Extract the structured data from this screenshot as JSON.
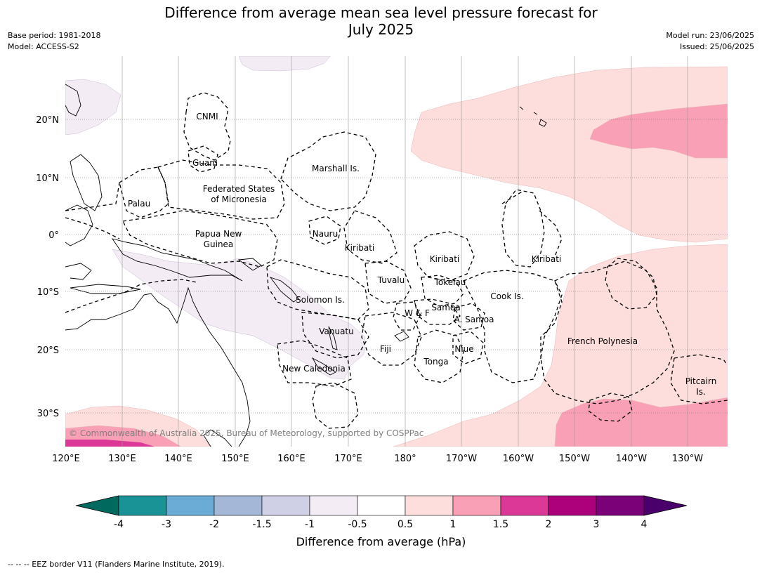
{
  "header": {
    "title_line1": "Difference from average mean sea level pressure forecast for",
    "title_line2": "July 2025",
    "base_period": "Base period: 1981-2018",
    "model": "Model: ACCESS-S2",
    "model_run": "Model run: 23/06/2025",
    "issued": "Issued: 25/06/2025"
  },
  "map": {
    "lat_labels": [
      "20°N",
      "10°N",
      "0°",
      "10°S",
      "20°S",
      "30°S"
    ],
    "lon_labels": [
      "120°E",
      "130°E",
      "140°E",
      "150°E",
      "160°E",
      "170°E",
      "180°",
      "170°W",
      "160°W",
      "150°W",
      "140°W",
      "130°W"
    ],
    "regions": {
      "cnmi": "CNMI",
      "guam": "Guam",
      "marshall": "Marshall Is.",
      "fsm_1": "Federated States",
      "fsm_2": "of Micronesia",
      "palau": "Palau",
      "png_1": "Papua New",
      "png_2": "Guinea",
      "nauru": "Nauru",
      "kiribati_w": "Kiribati",
      "kiribati_c": "Kiribati",
      "kiribati_e": "Kiribati",
      "tuvalu": "Tuvalu",
      "tokelau": "Tokelau",
      "cook": "Cook Is.",
      "solomon": "Solomon Is.",
      "wf": "W & F",
      "samoa": "Samoa",
      "asamoa": "A. Samoa",
      "vanuatu": "Vanuatu",
      "fiji": "Fiji",
      "niue": "Niue",
      "tonga": "Tonga",
      "newcal": "New Caledonia",
      "frenchpoly": "French Polynesia",
      "pitcairn_1": "Pitcairn",
      "pitcairn_2": "Is."
    },
    "copyright": "© Commonwealth of Australia 2025, Bureau of Meteorology, supported by COSPPac"
  },
  "colorbar": {
    "ticks": [
      "-4",
      "-3",
      "-2",
      "-1.5",
      "-1",
      "-0.5",
      "0.5",
      "1",
      "1.5",
      "2",
      "3",
      "4"
    ],
    "colors": [
      "#1a9396",
      "#6aacd5",
      "#a5b7d7",
      "#cfcfe5",
      "#f3ecf5",
      "#ffffff",
      "#fddedd",
      "#f9a0b6",
      "#dc3897",
      "#ad017c",
      "#7a0177"
    ],
    "under_color": "#02695e",
    "over_color": "#49006a",
    "label": "Difference from average (hPa)"
  },
  "footnote": "--  --  -- EEZ border V11 (Flanders Marine Institute, 2019)."
}
